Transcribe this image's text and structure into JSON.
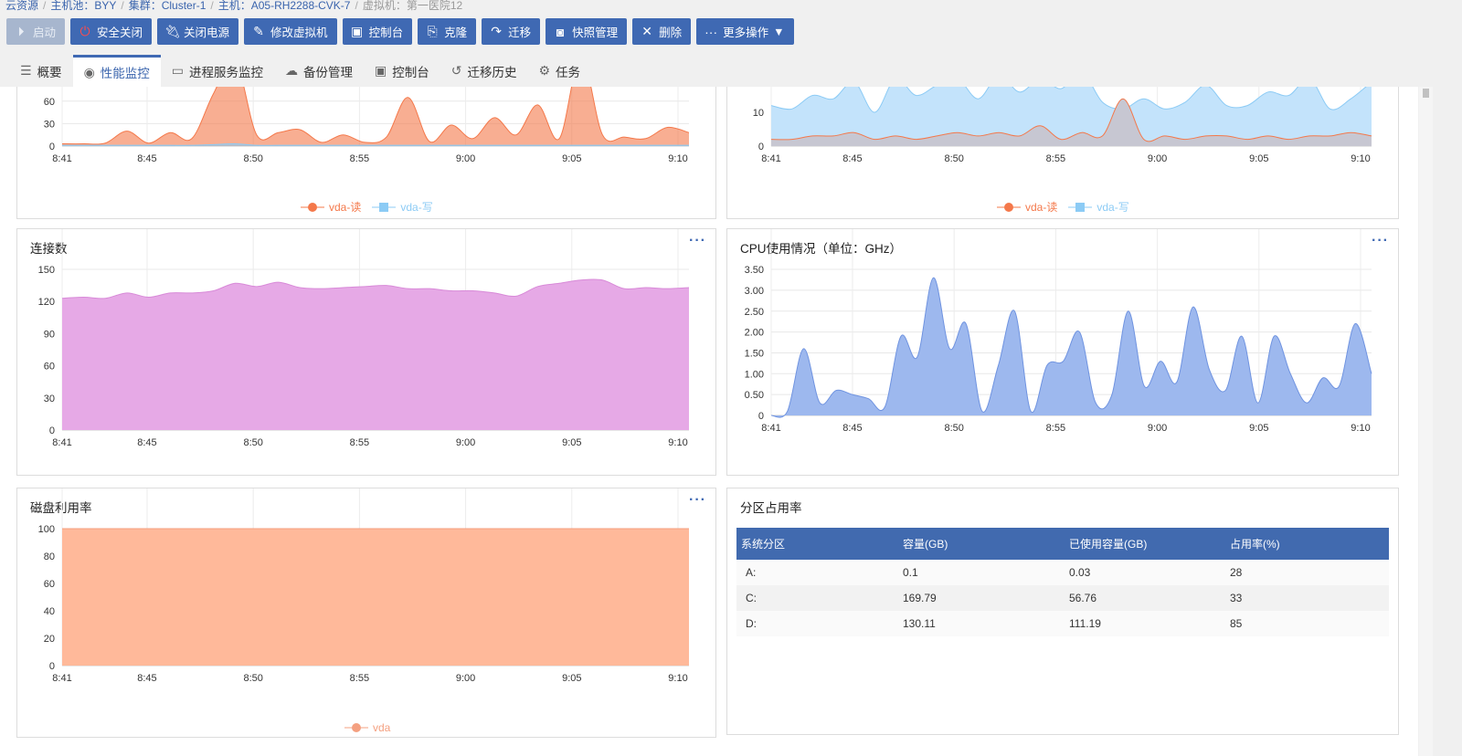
{
  "breadcrumb": [
    "云资源",
    "主机池：BYY",
    "集群：Cluster-1",
    "主机：A05-RH2288-CVK-7",
    "虚拟机：第一医院12"
  ],
  "toolbar": [
    {
      "label": "启动",
      "icon": "play-icon",
      "disabled": true
    },
    {
      "label": "安全关闭",
      "icon": "power-icon"
    },
    {
      "label": "关闭电源",
      "icon": "plug-icon"
    },
    {
      "label": "修改虚拟机",
      "icon": "pencil-icon"
    },
    {
      "label": "控制台",
      "icon": "console-icon"
    },
    {
      "label": "克隆",
      "icon": "clone-icon"
    },
    {
      "label": "迁移",
      "icon": "share-arrow-icon"
    },
    {
      "label": "快照管理",
      "icon": "camera-icon"
    },
    {
      "label": "删除",
      "icon": "close-icon"
    },
    {
      "label": "更多操作",
      "icon": "more-icon"
    }
  ],
  "tabs": [
    {
      "label": "概要",
      "icon": "list-icon"
    },
    {
      "label": "性能监控",
      "icon": "webcam-icon",
      "active": true
    },
    {
      "label": "进程服务监控",
      "icon": "monitor-icon"
    },
    {
      "label": "备份管理",
      "icon": "cloud-icon"
    },
    {
      "label": "控制台",
      "icon": "console-icon"
    },
    {
      "label": "迁移历史",
      "icon": "history-icon"
    },
    {
      "label": "任务",
      "icon": "gear-icon"
    }
  ],
  "colors": {
    "accent": "#3f69b3",
    "read": "#f4784a",
    "write": "#8ccbf5",
    "connections": "#e6a9e6",
    "cpu": "#9db8ee",
    "disk_util": "#ffb99a"
  },
  "partition": {
    "title": "分区占用率",
    "columns": [
      "系统分区",
      "容量(GB)",
      "已使用容量(GB)",
      "占用率(%)"
    ],
    "rows": [
      [
        "A:",
        "0.1",
        "0.03",
        "28"
      ],
      [
        "C:",
        "169.79",
        "56.76",
        "33"
      ],
      [
        "D:",
        "130.11",
        "111.19",
        "85"
      ]
    ]
  },
  "chart_data": [
    {
      "type": "area",
      "title": "",
      "x_ticks": [
        "8:41",
        "8:45",
        "8:50",
        "8:55",
        "9:00",
        "9:05",
        "9:10"
      ],
      "y_ticks": [
        "0",
        "30",
        "60"
      ],
      "series": [
        {
          "name": "vda-读",
          "values": [
            3,
            3,
            4,
            20,
            4,
            18,
            10,
            70,
            115,
            15,
            18,
            22,
            5,
            15,
            5,
            12,
            65,
            6,
            28,
            10,
            38,
            15,
            55,
            10,
            120,
            15,
            12,
            10,
            25,
            18
          ]
        },
        {
          "name": "vda-写",
          "values": [
            1,
            1,
            1,
            1,
            1,
            1,
            1,
            2,
            3,
            1,
            1,
            1,
            1,
            1,
            1,
            1,
            1,
            1,
            1,
            1,
            1,
            1,
            1,
            1,
            1,
            1,
            1,
            1,
            1,
            1
          ]
        }
      ]
    },
    {
      "type": "area",
      "title": "",
      "x_ticks": [
        "8:41",
        "8:45",
        "8:50",
        "8:55",
        "9:00",
        "9:05",
        "9:10"
      ],
      "y_ticks": [
        "0",
        "10"
      ],
      "series": [
        {
          "name": "vda-读",
          "values": [
            2,
            2,
            3,
            3,
            4,
            2,
            3,
            2,
            3,
            4,
            3,
            4,
            3,
            6,
            2,
            4,
            3,
            14,
            2,
            3,
            2,
            3,
            3,
            2,
            3,
            2,
            3,
            3,
            4,
            3
          ]
        },
        {
          "name": "vda-写",
          "values": [
            12,
            11,
            15,
            14,
            19,
            10,
            20,
            15,
            18,
            20,
            14,
            21,
            16,
            20,
            17,
            22,
            13,
            11,
            14,
            11,
            13,
            18,
            12,
            12,
            16,
            15,
            20,
            11,
            14,
            19
          ]
        }
      ]
    },
    {
      "type": "area",
      "title": "连接数",
      "x_ticks": [
        "8:41",
        "8:45",
        "8:50",
        "8:55",
        "9:00",
        "9:05",
        "9:10"
      ],
      "y_ticks": [
        "0",
        "30",
        "60",
        "90",
        "120",
        "150"
      ],
      "series": [
        {
          "name": "",
          "values": [
            123,
            124,
            123,
            128,
            124,
            128,
            128,
            130,
            137,
            134,
            138,
            133,
            132,
            133,
            134,
            135,
            132,
            132,
            130,
            130,
            128,
            125,
            134,
            137,
            140,
            140,
            132,
            133,
            132,
            133
          ]
        }
      ]
    },
    {
      "type": "area",
      "title": "CPU使用情况（单位：GHz）",
      "x_ticks": [
        "8:41",
        "8:45",
        "8:50",
        "8:55",
        "9:00",
        "9:05",
        "9:10"
      ],
      "y_ticks": [
        "0",
        "0.50",
        "1.00",
        "1.50",
        "2.00",
        "2.50",
        "3.00",
        "3.50"
      ],
      "series": [
        {
          "name": "",
          "values": [
            0,
            0.1,
            1.6,
            0.3,
            0.6,
            0.5,
            0.4,
            0.2,
            1.9,
            1.4,
            3.3,
            1.6,
            2.2,
            0.1,
            1.2,
            2.5,
            0.1,
            1.2,
            1.3,
            2.0,
            0.3,
            0.5,
            2.5,
            0.7,
            1.3,
            0.8,
            2.6,
            1.1,
            0.6,
            1.9,
            0.3,
            1.9,
            1.0,
            0.3,
            0.9,
            0.7,
            2.2,
            1.0
          ]
        }
      ]
    },
    {
      "type": "area",
      "title": "磁盘利用率",
      "x_ticks": [
        "8:41",
        "8:45",
        "8:50",
        "8:55",
        "9:00",
        "9:05",
        "9:10"
      ],
      "y_ticks": [
        "0",
        "20",
        "40",
        "60",
        "80",
        "100"
      ],
      "series": [
        {
          "name": "vda",
          "values": [
            100,
            100
          ]
        }
      ]
    }
  ]
}
